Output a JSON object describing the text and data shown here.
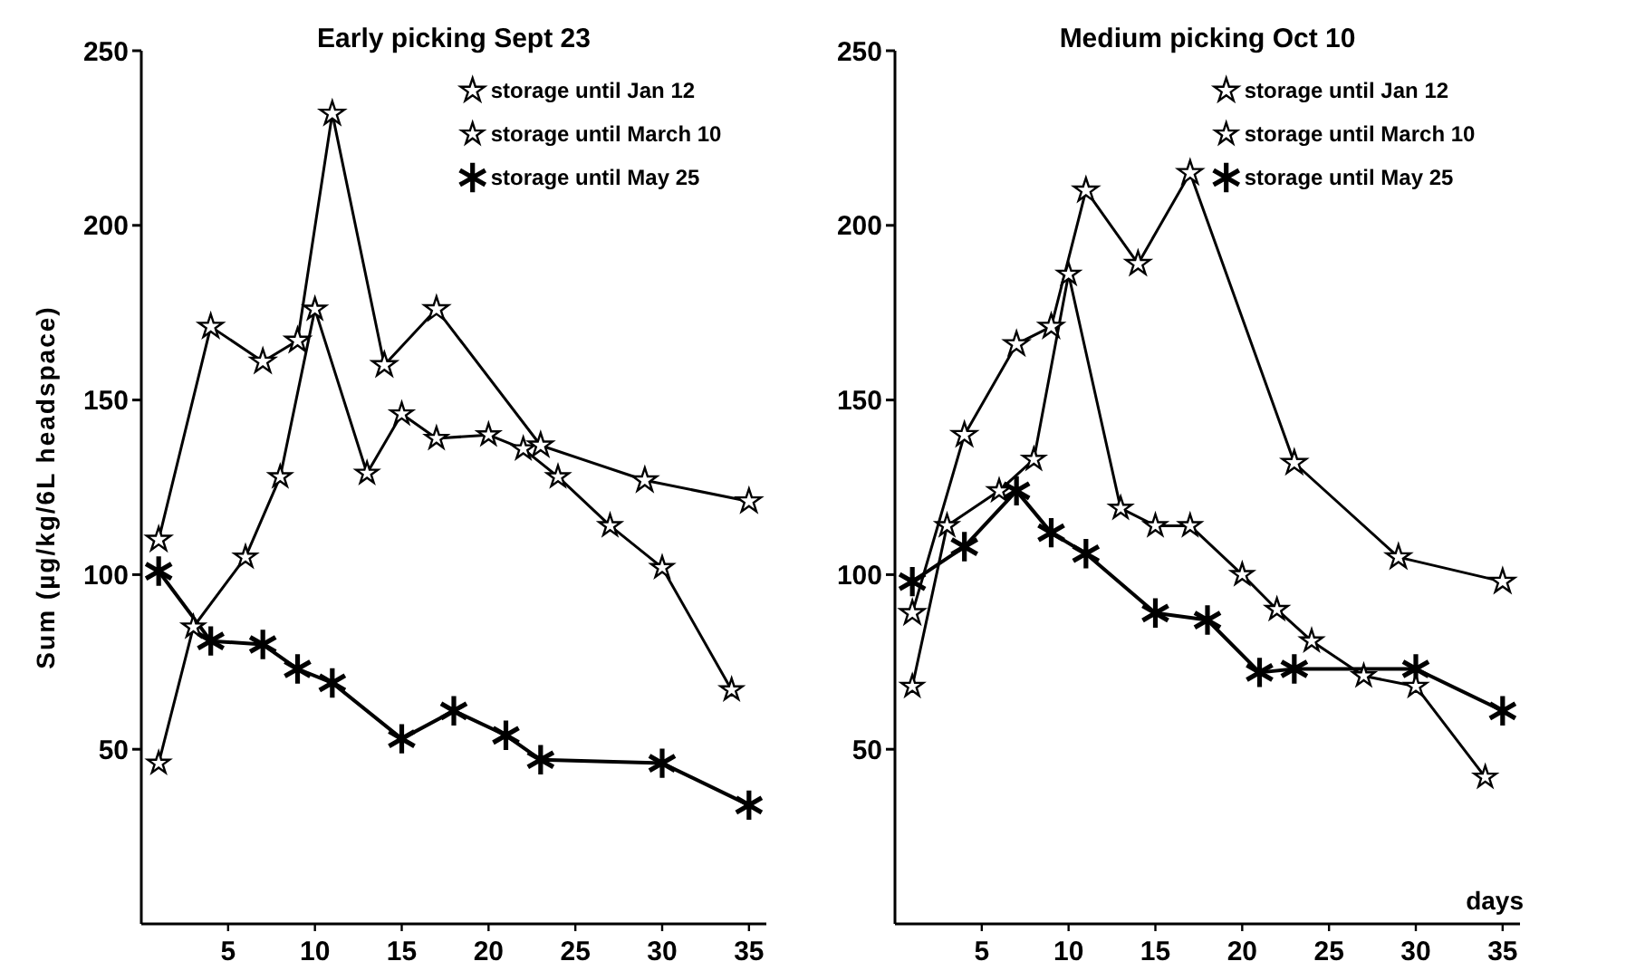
{
  "chart_data": [
    {
      "type": "line",
      "title": "Early picking  Sept 23",
      "ylabel": "Sum (µg/kg/6L headspace)",
      "xlim": [
        0,
        36
      ],
      "xticks": [
        5,
        10,
        15,
        20,
        25,
        30,
        35
      ],
      "ylim": [
        0,
        250
      ],
      "yticks": [
        50,
        100,
        150,
        200,
        250
      ],
      "legend": "top right",
      "grid": false,
      "series": [
        {
          "name": "storage until Jan 12",
          "color": "#000000",
          "marker": "star",
          "x": [
            1,
            4,
            7,
            9,
            11,
            14,
            17,
            23,
            29,
            35
          ],
          "values": [
            110,
            171,
            161,
            167,
            232,
            160,
            176,
            137,
            127,
            121
          ]
        },
        {
          "name": "storage until March 10",
          "color": "#000000",
          "marker": "star",
          "x": [
            1,
            3,
            6,
            8,
            10,
            13,
            15,
            17,
            20,
            22,
            24,
            27,
            30,
            34
          ],
          "values": [
            46,
            85,
            105,
            128,
            176,
            129,
            146,
            139,
            140,
            136,
            128,
            114,
            102,
            67
          ]
        },
        {
          "name": "storage until May 25",
          "color": "#000000",
          "marker": "cross",
          "x": [
            1,
            4,
            7,
            9,
            11,
            15,
            18,
            21,
            23,
            30,
            35
          ],
          "values": [
            101,
            81,
            80,
            73,
            69,
            53,
            61,
            54,
            47,
            46,
            34
          ]
        }
      ]
    },
    {
      "type": "line",
      "title": "Medium picking  Oct 10",
      "xlabel": "days",
      "xlim": [
        0,
        36
      ],
      "xticks": [
        5,
        10,
        15,
        20,
        25,
        30,
        35
      ],
      "ylim": [
        0,
        250
      ],
      "yticks": [
        50,
        100,
        150,
        200,
        250
      ],
      "legend": "top right",
      "grid": false,
      "series": [
        {
          "name": "storage until Jan 12",
          "color": "#000000",
          "marker": "star",
          "x": [
            1,
            4,
            7,
            9,
            11,
            14,
            17,
            23,
            29,
            35
          ],
          "values": [
            89,
            140,
            166,
            171,
            210,
            189,
            215,
            132,
            105,
            98
          ]
        },
        {
          "name": "storage until March 10",
          "color": "#000000",
          "marker": "star",
          "x": [
            1,
            3,
            6,
            8,
            10,
            13,
            15,
            17,
            20,
            22,
            24,
            27,
            30,
            34
          ],
          "values": [
            68,
            114,
            124,
            133,
            186,
            119,
            114,
            114,
            100,
            90,
            81,
            71,
            68,
            42
          ]
        },
        {
          "name": "storage until May 25",
          "color": "#000000",
          "marker": "cross",
          "x": [
            1,
            4,
            7,
            9,
            11,
            15,
            18,
            21,
            23,
            30,
            35
          ],
          "values": [
            98,
            108,
            124,
            112,
            106,
            89,
            87,
            72,
            73,
            73,
            61
          ]
        }
      ]
    }
  ]
}
